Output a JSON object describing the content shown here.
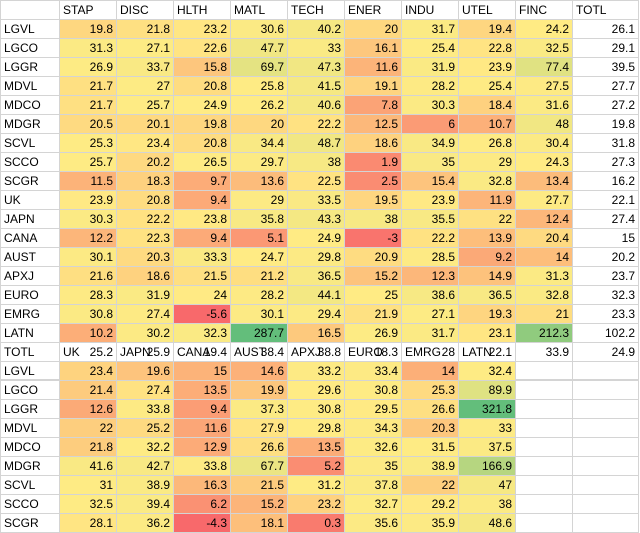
{
  "heat_colors": [
    "#f8696b",
    "#ffeb84",
    "#63be7b"
  ],
  "table1": {
    "headers": [
      "STAP",
      "DISC",
      "HLTH",
      "MATL",
      "TECH",
      "ENER",
      "INDU",
      "UTEL",
      "FINC",
      "TOTL"
    ],
    "rows": [
      {
        "label": "LGVL",
        "values": [
          "19.8",
          "21.8",
          "23.2",
          "30.6",
          "40.2",
          "20",
          "31.7",
          "19.4",
          "24.2",
          "26.1"
        ]
      },
      {
        "label": "LGCO",
        "values": [
          "31.3",
          "27.1",
          "22.6",
          "47.7",
          "33",
          "16.1",
          "25.4",
          "22.8",
          "32.5",
          "29.1"
        ]
      },
      {
        "label": "LGGR",
        "values": [
          "26.9",
          "33.7",
          "15.8",
          "69.7",
          "47.3",
          "11.6",
          "31.9",
          "23.9",
          "77.4",
          "39.5"
        ]
      },
      {
        "label": "MDVL",
        "values": [
          "21.7",
          "27",
          "20.8",
          "25.8",
          "41.5",
          "19.1",
          "28.2",
          "25.4",
          "27.5",
          "27.7"
        ]
      },
      {
        "label": "MDCO",
        "values": [
          "21.7",
          "25.7",
          "24.9",
          "26.2",
          "40.6",
          "7.8",
          "30.3",
          "18.4",
          "31.6",
          "27.2"
        ]
      },
      {
        "label": "MDGR",
        "values": [
          "20.5",
          "20.1",
          "19.8",
          "20",
          "22.2",
          "12.5",
          "6",
          "10.7",
          "48",
          "19.8"
        ]
      },
      {
        "label": "SCVL",
        "values": [
          "25.3",
          "23.4",
          "20.8",
          "34.4",
          "48.7",
          "18.6",
          "34.9",
          "26.8",
          "30.4",
          "31.8"
        ]
      },
      {
        "label": "SCCO",
        "values": [
          "25.7",
          "20.2",
          "26.5",
          "29.7",
          "38",
          "1.9",
          "35",
          "29",
          "24.3",
          "27.3"
        ]
      },
      {
        "label": "SCGR",
        "values": [
          "11.5",
          "18.3",
          "9.7",
          "13.6",
          "22.5",
          "2.5",
          "15.4",
          "32.8",
          "13.4",
          "16.2"
        ]
      },
      {
        "label": "UK",
        "values": [
          "23.9",
          "20.8",
          "9.4",
          "29",
          "33.5",
          "19.5",
          "23.9",
          "11.9",
          "27.7",
          "22.1"
        ]
      },
      {
        "label": "JAPN",
        "values": [
          "30.3",
          "22.2",
          "23.8",
          "35.8",
          "43.3",
          "38",
          "35.5",
          "22",
          "12.4",
          "27.4"
        ]
      },
      {
        "label": "CANA",
        "values": [
          "12.2",
          "22.3",
          "9.4",
          "5.1",
          "24.9",
          "-3",
          "22.2",
          "13.9",
          "20.4",
          "15"
        ]
      },
      {
        "label": "AUST",
        "values": [
          "30.1",
          "20.3",
          "33.3",
          "24.7",
          "29.8",
          "20.9",
          "28.5",
          "9.2",
          "14",
          "20.2"
        ]
      },
      {
        "label": "APXJ",
        "values": [
          "21.6",
          "18.6",
          "21.5",
          "21.2",
          "36.5",
          "15.2",
          "12.3",
          "14.9",
          "31.3",
          "23.7"
        ]
      },
      {
        "label": "EURO",
        "values": [
          "28.3",
          "31.9",
          "24",
          "28.2",
          "44.1",
          "25",
          "38.6",
          "36.5",
          "32.8",
          "32.3"
        ]
      },
      {
        "label": "EMRG",
        "values": [
          "30.8",
          "27.4",
          "-5.6",
          "30.1",
          "29.4",
          "21.9",
          "27.1",
          "19.3",
          "21",
          "23.3"
        ]
      },
      {
        "label": "LATN",
        "values": [
          "10.2",
          "30.2",
          "32.3",
          "287.7",
          "16.5",
          "26.9",
          "31.7",
          "23.1",
          "212.3",
          "102.2"
        ]
      }
    ],
    "totals": {
      "label": "TOTL",
      "values": [
        "25.2",
        "25.9",
        "19.4",
        "38.4",
        "38.8",
        "18.3",
        "28",
        "22.1",
        "33.9",
        "24.9"
      ]
    }
  },
  "table2": {
    "headers": [
      "UK",
      "JAPN",
      "CANA",
      "AUST",
      "APXJ",
      "EURO",
      "EMRG",
      "LATN"
    ],
    "rows": [
      {
        "label": "LGVL",
        "values": [
          "23.4",
          "19.6",
          "15",
          "14.6",
          "33.2",
          "33.4",
          "14",
          "32.4"
        ]
      },
      {
        "label": "LGCO",
        "values": [
          "21.4",
          "27.4",
          "13.5",
          "19.9",
          "29.6",
          "30.8",
          "25.3",
          "89.9"
        ]
      },
      {
        "label": "LGGR",
        "values": [
          "12.6",
          "33.8",
          "9.4",
          "37.3",
          "30.8",
          "29.5",
          "26.6",
          "321.8"
        ]
      },
      {
        "label": "MDVL",
        "values": [
          "22",
          "25.2",
          "11.6",
          "27.9",
          "29.8",
          "34.3",
          "20.3",
          "33"
        ]
      },
      {
        "label": "MDCO",
        "values": [
          "21.8",
          "32.2",
          "12.9",
          "26.6",
          "13.5",
          "32.6",
          "31.5",
          "37.5"
        ]
      },
      {
        "label": "MDGR",
        "values": [
          "41.6",
          "42.7",
          "33.8",
          "67.7",
          "5.2",
          "35",
          "38.9",
          "166.9"
        ]
      },
      {
        "label": "SCVL",
        "values": [
          "31",
          "38.9",
          "16.3",
          "21.5",
          "31.2",
          "37.8",
          "22",
          "47"
        ]
      },
      {
        "label": "SCCO",
        "values": [
          "32.5",
          "39.4",
          "6.2",
          "15.2",
          "23.2",
          "32.7",
          "29.2",
          "38"
        ]
      },
      {
        "label": "SCGR",
        "values": [
          "28.1",
          "36.2",
          "-4.3",
          "18.1",
          "0.3",
          "35.6",
          "35.9",
          "48.6"
        ]
      }
    ]
  }
}
